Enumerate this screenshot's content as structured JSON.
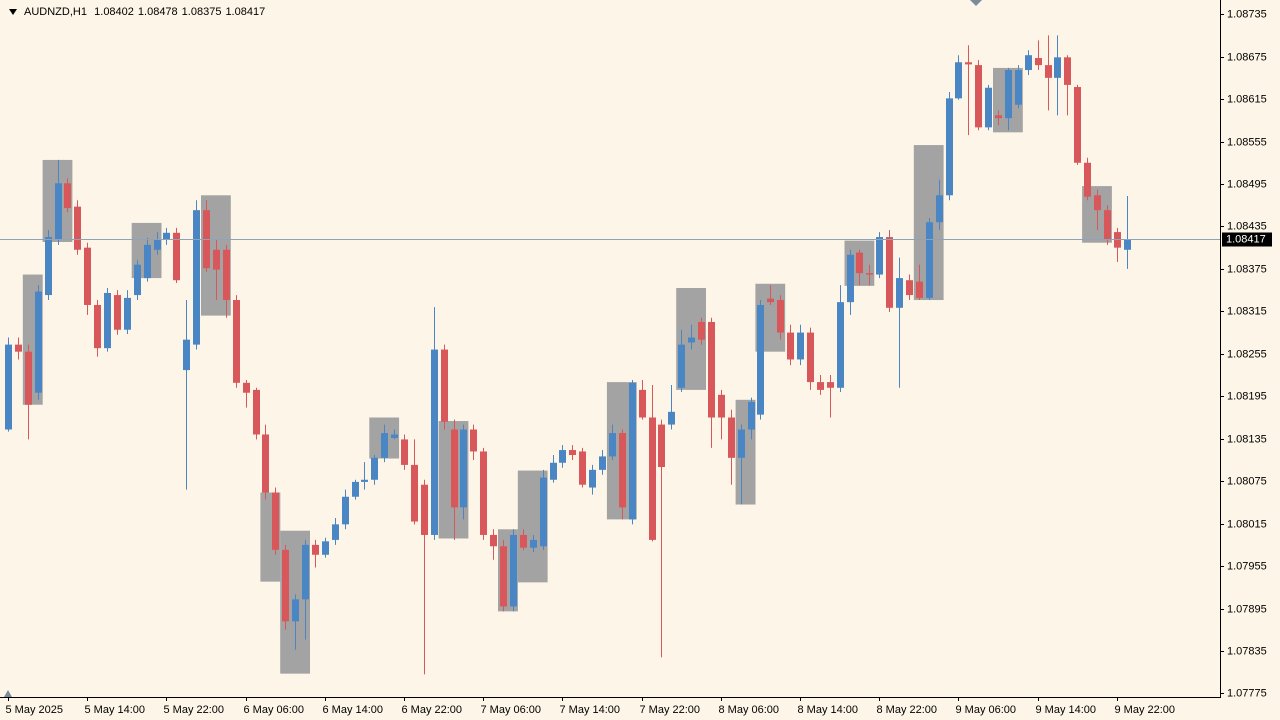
{
  "chart_data": {
    "type": "candlestick",
    "title": "AUDNZD,H1",
    "up_color": "#4a86c4",
    "down_color": "#d7575a",
    "zone_color": "#a3a3a3",
    "price_line_color": "#8ea3b8",
    "ylim": [
      1.0777,
      1.08755
    ],
    "yticks": [
      1.08735,
      1.08675,
      1.08615,
      1.08555,
      1.08495,
      1.08435,
      1.08375,
      1.08315,
      1.08255,
      1.08195,
      1.08135,
      1.08075,
      1.08015,
      1.07955,
      1.07895,
      1.07835,
      1.07775
    ],
    "categories": [
      "5 May 2025",
      null,
      null,
      null,
      null,
      null,
      null,
      null,
      "5 May 14:00",
      null,
      null,
      null,
      null,
      null,
      null,
      null,
      "5 May 22:00",
      null,
      null,
      null,
      null,
      null,
      null,
      null,
      "6 May 06:00",
      null,
      null,
      null,
      null,
      null,
      null,
      null,
      "6 May 14:00",
      null,
      null,
      null,
      null,
      null,
      null,
      null,
      "6 May 22:00",
      null,
      null,
      null,
      null,
      null,
      null,
      null,
      "7 May 06:00",
      null,
      null,
      null,
      null,
      null,
      null,
      null,
      "7 May 14:00",
      null,
      null,
      null,
      null,
      null,
      null,
      null,
      "7 May 22:00",
      null,
      null,
      null,
      null,
      null,
      null,
      null,
      "8 May 06:00",
      null,
      null,
      null,
      null,
      null,
      null,
      null,
      "8 May 14:00",
      null,
      null,
      null,
      null,
      null,
      null,
      null,
      "8 May 22:00",
      null,
      null,
      null,
      null,
      null,
      null,
      null,
      "9 May 06:00",
      null,
      null,
      null,
      null,
      null,
      null,
      null,
      "9 May 14:00",
      null,
      null,
      null,
      null,
      null,
      null,
      null,
      "9 May 22:00",
      null
    ],
    "open": [
      1.08148,
      1.08268,
      1.08258,
      1.082,
      1.08338,
      1.08416,
      1.08496,
      1.08463,
      1.08405,
      1.08324,
      1.08263,
      1.08338,
      1.08289,
      1.08338,
      1.08362,
      1.08402,
      1.08416,
      1.08426,
      1.08232,
      1.08268,
      1.08458,
      1.08402,
      1.08402,
      1.08331,
      1.08214,
      1.08204,
      1.08141,
      1.08059,
      1.07978,
      1.07877,
      1.07908,
      1.07985,
      1.07971,
      1.07992,
      1.08014,
      1.08053,
      1.08074,
      1.08077,
      1.08108,
      1.08136,
      1.08134,
      1.08098,
      1.0807,
      1.07999,
      1.08261,
      1.08148,
      1.08038,
      1.08148,
      1.08117,
      1.07999,
      1.07983,
      1.07898,
      1.07999,
      1.07981,
      1.07983,
      1.08077,
      1.08101,
      1.08119,
      1.08117,
      1.08066,
      1.08091,
      1.0811,
      1.08143,
      1.08021,
      1.08204,
      1.08165,
      1.08155,
      1.08155,
      1.08207,
      1.08271,
      1.083,
      1.083,
      1.08197,
      1.08165,
      1.08108,
      1.08148,
      1.08169,
      1.08333,
      1.08331,
      1.08285,
      1.08247,
      1.08285,
      1.08215,
      1.08215,
      1.08207,
      1.08328,
      1.08398,
      1.08369,
      1.08367,
      1.0842,
      1.0832,
      1.08359,
      1.08357,
      1.08334,
      1.08441,
      1.08479,
      1.08616,
      1.08667,
      1.08663,
      1.08575,
      1.08592,
      1.08588,
      1.08607,
      1.08656,
      1.08673,
      1.08663,
      1.08645,
      1.08674,
      1.08632,
      1.08525,
      1.08479,
      1.08458,
      1.08427,
      1.08402
    ],
    "high": [
      1.08278,
      1.08278,
      1.08268,
      1.08352,
      1.0843,
      1.08529,
      1.08503,
      1.08472,
      1.08412,
      1.08331,
      1.08348,
      1.08345,
      1.08345,
      1.08388,
      1.08419,
      1.08427,
      1.08433,
      1.08433,
      1.08331,
      1.08472,
      1.08472,
      1.08416,
      1.08409,
      1.08338,
      1.08218,
      1.08207,
      1.08155,
      1.08066,
      1.07985,
      1.07915,
      1.07992,
      1.07992,
      1.07995,
      1.08023,
      1.08063,
      1.08077,
      1.08102,
      1.08112,
      1.08155,
      1.08148,
      1.08141,
      1.08134,
      1.08077,
      1.08321,
      1.08268,
      1.08162,
      1.08155,
      1.08155,
      1.08122,
      1.08007,
      1.07992,
      1.08007,
      1.08007,
      1.07999,
      1.08091,
      1.08112,
      1.08126,
      1.08126,
      1.08122,
      1.08098,
      1.08119,
      1.08155,
      1.08148,
      1.08218,
      1.08218,
      1.08211,
      1.08162,
      1.08211,
      1.08289,
      1.08296,
      1.08306,
      1.08306,
      1.08204,
      1.08176,
      1.08155,
      1.08193,
      1.08331,
      1.08352,
      1.08338,
      1.08296,
      1.08296,
      1.08292,
      1.08225,
      1.08225,
      1.08352,
      1.08402,
      1.08402,
      1.08381,
      1.08427,
      1.0843,
      1.08391,
      1.08367,
      1.08381,
      1.08447,
      1.08501,
      1.08625,
      1.08677,
      1.08691,
      1.0867,
      1.08635,
      1.08599,
      1.08659,
      1.08663,
      1.08684,
      1.08698,
      1.08705,
      1.08705,
      1.08677,
      1.08635,
      1.08532,
      1.08487,
      1.08465,
      1.08433,
      1.08478
    ],
    "low": [
      1.08145,
      1.08247,
      1.08134,
      1.0819,
      1.08331,
      1.08409,
      1.08455,
      1.08395,
      1.0831,
      1.08251,
      1.08258,
      1.08282,
      1.08283,
      1.08331,
      1.08357,
      1.08395,
      1.08409,
      1.08355,
      1.08063,
      1.08261,
      1.08371,
      1.08331,
      1.08306,
      1.08207,
      1.08179,
      1.08134,
      1.08049,
      1.07971,
      1.07865,
      1.07837,
      1.07851,
      1.07953,
      1.07967,
      1.07985,
      1.08007,
      1.08049,
      1.08063,
      1.0807,
      1.08102,
      1.08134,
      1.08091,
      1.08014,
      1.07802,
      1.07992,
      1.08148,
      1.07992,
      1.08021,
      1.08105,
      1.07992,
      1.07964,
      1.07891,
      1.07891,
      1.07978,
      1.07975,
      1.07978,
      1.08073,
      1.08094,
      1.08105,
      1.08066,
      1.08056,
      1.08084,
      1.08105,
      1.08021,
      1.08014,
      1.08162,
      1.0799,
      1.07826,
      1.08148,
      1.08201,
      1.08261,
      1.08268,
      1.08122,
      1.08134,
      1.0807,
      1.08042,
      1.08134,
      1.08162,
      1.08324,
      1.08275,
      1.08239,
      1.08239,
      1.08204,
      1.08197,
      1.08165,
      1.08201,
      1.0831,
      1.08352,
      1.08352,
      1.08362,
      1.08314,
      1.08207,
      1.08331,
      1.08331,
      1.08331,
      1.0843,
      1.08472,
      1.08614,
      1.08564,
      1.08571,
      1.08571,
      1.08578,
      1.08571,
      1.08602,
      1.08649,
      1.08656,
      1.08599,
      1.08592,
      1.08592,
      1.08522,
      1.08472,
      1.0843,
      1.08409,
      1.08385,
      1.08375
    ],
    "close": [
      1.08268,
      1.08258,
      1.08183,
      1.08343,
      1.0842,
      1.08496,
      1.08461,
      1.08402,
      1.08324,
      1.08263,
      1.08341,
      1.08289,
      1.08334,
      1.08381,
      1.08409,
      1.08416,
      1.08426,
      1.08359,
      1.08275,
      1.08458,
      1.08376,
      1.08374,
      1.08331,
      1.08214,
      1.082,
      1.08141,
      1.08059,
      1.07978,
      1.07877,
      1.07908,
      1.07985,
      1.07971,
      1.0799,
      1.08014,
      1.08053,
      1.08074,
      1.08077,
      1.08108,
      1.08143,
      1.08141,
      1.08098,
      1.08018,
      1.07999,
      1.08261,
      1.08159,
      1.08038,
      1.08148,
      1.08117,
      1.07999,
      1.07983,
      1.07898,
      1.07999,
      1.07981,
      1.07992,
      1.0808,
      1.08101,
      1.08119,
      1.08112,
      1.0807,
      1.08091,
      1.0811,
      1.08143,
      1.08038,
      1.08214,
      1.08165,
      1.07992,
      1.08095,
      1.08173,
      1.08268,
      1.08278,
      1.08275,
      1.08165,
      1.08165,
      1.08108,
      1.08148,
      1.08187,
      1.08324,
      1.08328,
      1.08285,
      1.08247,
      1.08285,
      1.08215,
      1.08204,
      1.08207,
      1.08328,
      1.08395,
      1.08369,
      1.08367,
      1.0842,
      1.0832,
      1.08362,
      1.08338,
      1.08334,
      1.08441,
      1.08479,
      1.08616,
      1.08667,
      1.08664,
      1.08575,
      1.08631,
      1.08588,
      1.08656,
      1.08656,
      1.08677,
      1.08663,
      1.08645,
      1.08674,
      1.08635,
      1.08525,
      1.08477,
      1.08458,
      1.08416,
      1.08405,
      1.08417
    ],
    "zones": [
      {
        "start": 2,
        "end": 3,
        "high": 1.08367,
        "low": 1.08183
      },
      {
        "start": 4,
        "end": 6,
        "high": 1.08529,
        "low": 1.08413
      },
      {
        "start": 13,
        "end": 15,
        "high": 1.0844,
        "low": 1.08362
      },
      {
        "start": 20,
        "end": 22,
        "high": 1.08479,
        "low": 1.08309
      },
      {
        "start": 26,
        "end": 27,
        "high": 1.08059,
        "low": 1.07933
      },
      {
        "start": 28,
        "end": 30,
        "high": 1.08005,
        "low": 1.07803
      },
      {
        "start": 37,
        "end": 39,
        "high": 1.08165,
        "low": 1.08107
      },
      {
        "start": 44,
        "end": 46,
        "high": 1.0816,
        "low": 1.07994
      },
      {
        "start": 50,
        "end": 51,
        "high": 1.08007,
        "low": 1.07891
      },
      {
        "start": 52,
        "end": 54,
        "high": 1.0809,
        "low": 1.07932
      },
      {
        "start": 61,
        "end": 63,
        "high": 1.08215,
        "low": 1.08021
      },
      {
        "start": 68,
        "end": 70,
        "high": 1.08348,
        "low": 1.08204
      },
      {
        "start": 74,
        "end": 75,
        "high": 1.0819,
        "low": 1.08042
      },
      {
        "start": 76,
        "end": 78,
        "high": 1.08354,
        "low": 1.08258
      },
      {
        "start": 85,
        "end": 87,
        "high": 1.08415,
        "low": 1.08351
      },
      {
        "start": 92,
        "end": 94,
        "high": 1.0855,
        "low": 1.08331
      },
      {
        "start": 100,
        "end": 102,
        "high": 1.08659,
        "low": 1.08568
      },
      {
        "start": 109,
        "end": 111,
        "high": 1.08492,
        "low": 1.08412
      }
    ]
  }
}
